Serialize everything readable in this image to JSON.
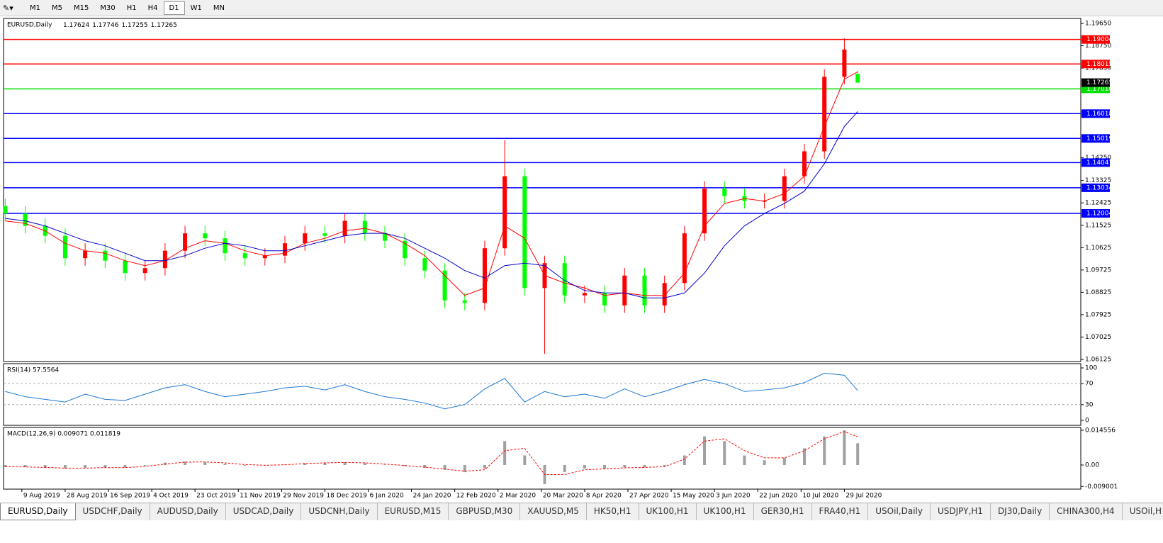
{
  "toolbar": {
    "buttons": [
      "M1",
      "M5",
      "M15",
      "M30",
      "H1",
      "H4",
      "D1",
      "W1",
      "MN"
    ],
    "active": 6
  },
  "tabs": [
    "EURUSD,Daily",
    "USDCHF,Daily",
    "AUDUSD,Daily",
    "USDCAD,Daily",
    "USDCNH,Daily",
    "EURUSD,M15",
    "GBPUSD,M30",
    "XAUUSD,M5",
    "HK50,H1",
    "UK100,H1",
    "UK100,H1",
    "GER30,H1",
    "FRA40,H1",
    "USOil,Daily",
    "USDJPY,H1",
    "DJ30,Daily",
    "CHINA300,H4",
    "USOil,H"
  ],
  "chart_data": [
    {
      "type": "candlestick",
      "title": "EURUSD,Daily",
      "quote": [
        1.17624,
        1.17746,
        1.17255,
        1.17265
      ],
      "up_color": "#ff0000",
      "down_color": "#00ff00",
      "x": [
        0,
        6,
        12,
        18,
        24,
        30,
        36,
        42,
        48,
        54,
        60,
        66,
        72,
        78,
        84,
        90,
        96,
        102,
        108,
        114,
        120,
        126,
        132,
        138,
        144,
        150,
        156,
        162,
        168,
        174,
        180,
        186,
        192,
        198,
        204,
        210,
        216,
        222,
        228,
        234,
        240,
        246,
        252,
        256
      ],
      "open": [
        1.123,
        1.12,
        1.115,
        1.111,
        1.102,
        1.105,
        1.101,
        1.096,
        1.098,
        1.105,
        1.112,
        1.11,
        1.104,
        1.102,
        1.103,
        1.108,
        1.112,
        1.111,
        1.117,
        1.112,
        1.109,
        1.102,
        1.097,
        1.085,
        1.084,
        1.106,
        1.135,
        1.09,
        1.1,
        1.087,
        1.088,
        1.083,
        1.095,
        1.083,
        1.092,
        1.112,
        1.13,
        1.127,
        1.125,
        1.125,
        1.135,
        1.145,
        1.175,
        1.17624
      ],
      "high": [
        1.126,
        1.123,
        1.118,
        1.114,
        1.108,
        1.108,
        1.104,
        1.101,
        1.108,
        1.115,
        1.115,
        1.113,
        1.107,
        1.106,
        1.111,
        1.115,
        1.115,
        1.12,
        1.12,
        1.115,
        1.112,
        1.105,
        1.1,
        1.088,
        1.109,
        1.1495,
        1.138,
        1.103,
        1.103,
        1.091,
        1.091,
        1.098,
        1.098,
        1.095,
        1.115,
        1.133,
        1.133,
        1.13,
        1.128,
        1.138,
        1.148,
        1.178,
        1.1905,
        1.17746
      ],
      "low": [
        1.117,
        1.112,
        1.108,
        1.099,
        1.099,
        1.098,
        1.093,
        1.093,
        1.095,
        1.102,
        1.107,
        1.101,
        1.099,
        1.099,
        1.1,
        1.105,
        1.108,
        1.108,
        1.109,
        1.106,
        1.099,
        1.094,
        1.082,
        1.081,
        1.081,
        1.103,
        1.087,
        1.0635,
        1.084,
        1.084,
        1.08,
        1.08,
        1.08,
        1.08,
        1.089,
        1.109,
        1.124,
        1.122,
        1.122,
        1.122,
        1.132,
        1.142,
        1.172,
        1.17255
      ],
      "close": [
        1.12,
        1.115,
        1.111,
        1.102,
        1.105,
        1.101,
        1.096,
        1.098,
        1.105,
        1.112,
        1.11,
        1.104,
        1.102,
        1.103,
        1.108,
        1.112,
        1.111,
        1.117,
        1.112,
        1.109,
        1.102,
        1.097,
        1.085,
        1.084,
        1.106,
        1.135,
        1.09,
        1.1,
        1.087,
        1.088,
        1.083,
        1.095,
        1.083,
        1.092,
        1.112,
        1.13,
        1.127,
        1.125,
        1.125,
        1.135,
        1.145,
        1.175,
        1.186,
        1.17265
      ],
      "series": [
        {
          "color": "#ff0000",
          "values": [
            1.117,
            1.116,
            1.113,
            1.108,
            1.105,
            1.104,
            1.101,
            1.099,
            1.101,
            1.106,
            1.109,
            1.108,
            1.105,
            1.103,
            1.104,
            1.108,
            1.11,
            1.113,
            1.114,
            1.112,
            1.108,
            1.103,
            1.095,
            1.087,
            1.09,
            1.115,
            1.11,
            1.095,
            1.092,
            1.09,
            1.087,
            1.088,
            1.087,
            1.087,
            1.096,
            1.115,
            1.124,
            1.126,
            1.125,
            1.128,
            1.135,
            1.155,
            1.174,
            1.177
          ]
        },
        {
          "color": "#0000cc",
          "values": [
            1.118,
            1.117,
            1.115,
            1.112,
            1.109,
            1.107,
            1.104,
            1.101,
            1.101,
            1.103,
            1.106,
            1.108,
            1.107,
            1.105,
            1.105,
            1.107,
            1.109,
            1.111,
            1.112,
            1.112,
            1.11,
            1.106,
            1.102,
            1.097,
            1.094,
            1.099,
            1.1,
            1.099,
            1.093,
            1.089,
            1.088,
            1.088,
            1.086,
            1.086,
            1.088,
            1.096,
            1.107,
            1.115,
            1.12,
            1.124,
            1.129,
            1.14,
            1.155,
            1.161
          ]
        }
      ],
      "levels": [
        {
          "value": 1.19004,
          "color": "#ff0000"
        },
        {
          "value": 1.18015,
          "color": "#ff0000"
        },
        {
          "value": 1.17016,
          "color": "#00e000"
        },
        {
          "value": 1.16018,
          "color": "#0000ff"
        },
        {
          "value": 1.15019,
          "color": "#0000ff"
        },
        {
          "value": 1.14047,
          "color": "#0000ff"
        },
        {
          "value": 1.13034,
          "color": "#0000ff"
        },
        {
          "value": 1.12004,
          "color": "#0000ff"
        }
      ],
      "last": 1.17265,
      "xlim": [
        -0.5,
        323
      ],
      "ylim": [
        1.0604,
        1.1985
      ],
      "yticks": [
        {
          "value": 1.1965,
          "label": "1.19650"
        },
        {
          "value": 1.1875,
          "label": "1.18750"
        },
        {
          "value": 1.1785,
          "label": "1.17850"
        },
        {
          "value": 1.1425,
          "label": "1.14250"
        },
        1.13325,
        1.12425,
        1.11525,
        1.10625,
        1.09725,
        1.08825,
        1.07925,
        1.07025,
        1.06125
      ],
      "xticks": [
        {
          "value": 5,
          "label": "9 Aug 2019"
        },
        {
          "value": 18,
          "label": "28 Aug 2019"
        },
        {
          "value": 31,
          "label": "16 Sep 2019"
        },
        {
          "value": 44,
          "label": "4 Oct 2019"
        },
        {
          "value": 57,
          "label": "23 Oct 2019"
        },
        {
          "value": 70,
          "label": "11 Nov 2019"
        },
        {
          "value": 83,
          "label": "29 Nov 2019"
        },
        {
          "value": 96,
          "label": "18 Dec 2019"
        },
        {
          "value": 109,
          "label": "6 Jan 2020"
        },
        {
          "value": 122,
          "label": "24 Jan 2020"
        },
        {
          "value": 135,
          "label": "12 Feb 2020"
        },
        {
          "value": 148,
          "label": "2 Mar 2020"
        },
        {
          "value": 161,
          "label": "20 Mar 2020"
        },
        {
          "value": 174,
          "label": "8 Apr 2020"
        },
        {
          "value": 187,
          "label": "27 Apr 2020"
        },
        {
          "value": 200,
          "label": "15 May 2020"
        },
        {
          "value": 213,
          "label": "3 Jun 2020"
        },
        {
          "value": 226,
          "label": "22 Jun 2020"
        },
        {
          "value": 239,
          "label": "10 Jul 2020"
        },
        {
          "value": 252,
          "label": "29 Jul 2020"
        }
      ]
    },
    {
      "type": "line",
      "title": "RSI(14) 57.5564",
      "color": "#1e78d2",
      "values": [
        55,
        45,
        40,
        35,
        50,
        40,
        38,
        50,
        62,
        68,
        55,
        45,
        50,
        55,
        62,
        65,
        58,
        68,
        55,
        45,
        40,
        33,
        22,
        30,
        60,
        80,
        35,
        55,
        45,
        50,
        42,
        60,
        45,
        55,
        68,
        78,
        70,
        55,
        58,
        62,
        72,
        90,
        86,
        57
      ],
      "ylim": [
        -9.5,
        108.1
      ],
      "yticks": [
        0,
        30,
        70,
        100
      ],
      "levels": [
        30,
        70
      ]
    },
    {
      "type": "macd",
      "title": "MACD(12,26,9) 0.009071 0.011819",
      "color": "#a0a0a0",
      "signal_color": "#ff0000",
      "values": [
        -0.0008,
        -0.0009,
        -0.0012,
        -0.0015,
        -0.0012,
        -0.001,
        -0.0011,
        -0.0003,
        0.001,
        0.0015,
        0.0012,
        0.0005,
        -0.0003,
        -0.0002,
        0.0002,
        0.0008,
        0.001,
        0.0012,
        0.0008,
        0.0002,
        -0.0005,
        -0.0012,
        -0.002,
        -0.003,
        -0.0015,
        0.01,
        0.004,
        -0.008,
        -0.003,
        -0.0015,
        -0.0015,
        -0.001,
        -0.001,
        -0.0005,
        0.004,
        0.012,
        0.01,
        0.004,
        0.002,
        0.003,
        0.007,
        0.012,
        0.0145,
        0.0091
      ],
      "signal": [
        -0.0007,
        -0.0008,
        -0.001,
        -0.0013,
        -0.0013,
        -0.0011,
        -0.0011,
        -0.0006,
        0.0004,
        0.0012,
        0.0013,
        0.0009,
        0.0002,
        -0.0001,
        0.0001,
        0.0006,
        0.0009,
        0.0011,
        0.0009,
        0.0004,
        -0.0002,
        -0.0009,
        -0.0017,
        -0.0026,
        -0.002,
        0.006,
        0.007,
        -0.004,
        -0.004,
        -0.002,
        -0.0016,
        -0.0012,
        -0.001,
        -0.0007,
        0.0025,
        0.01,
        0.011,
        0.006,
        0.003,
        0.003,
        0.006,
        0.011,
        0.014,
        0.0118
      ],
      "ylim": [
        -0.0101,
        0.01574
      ],
      "yticks": [
        0.014556,
        {
          "value": 0,
          "label": "0.00"
        },
        -0.009001
      ]
    }
  ]
}
